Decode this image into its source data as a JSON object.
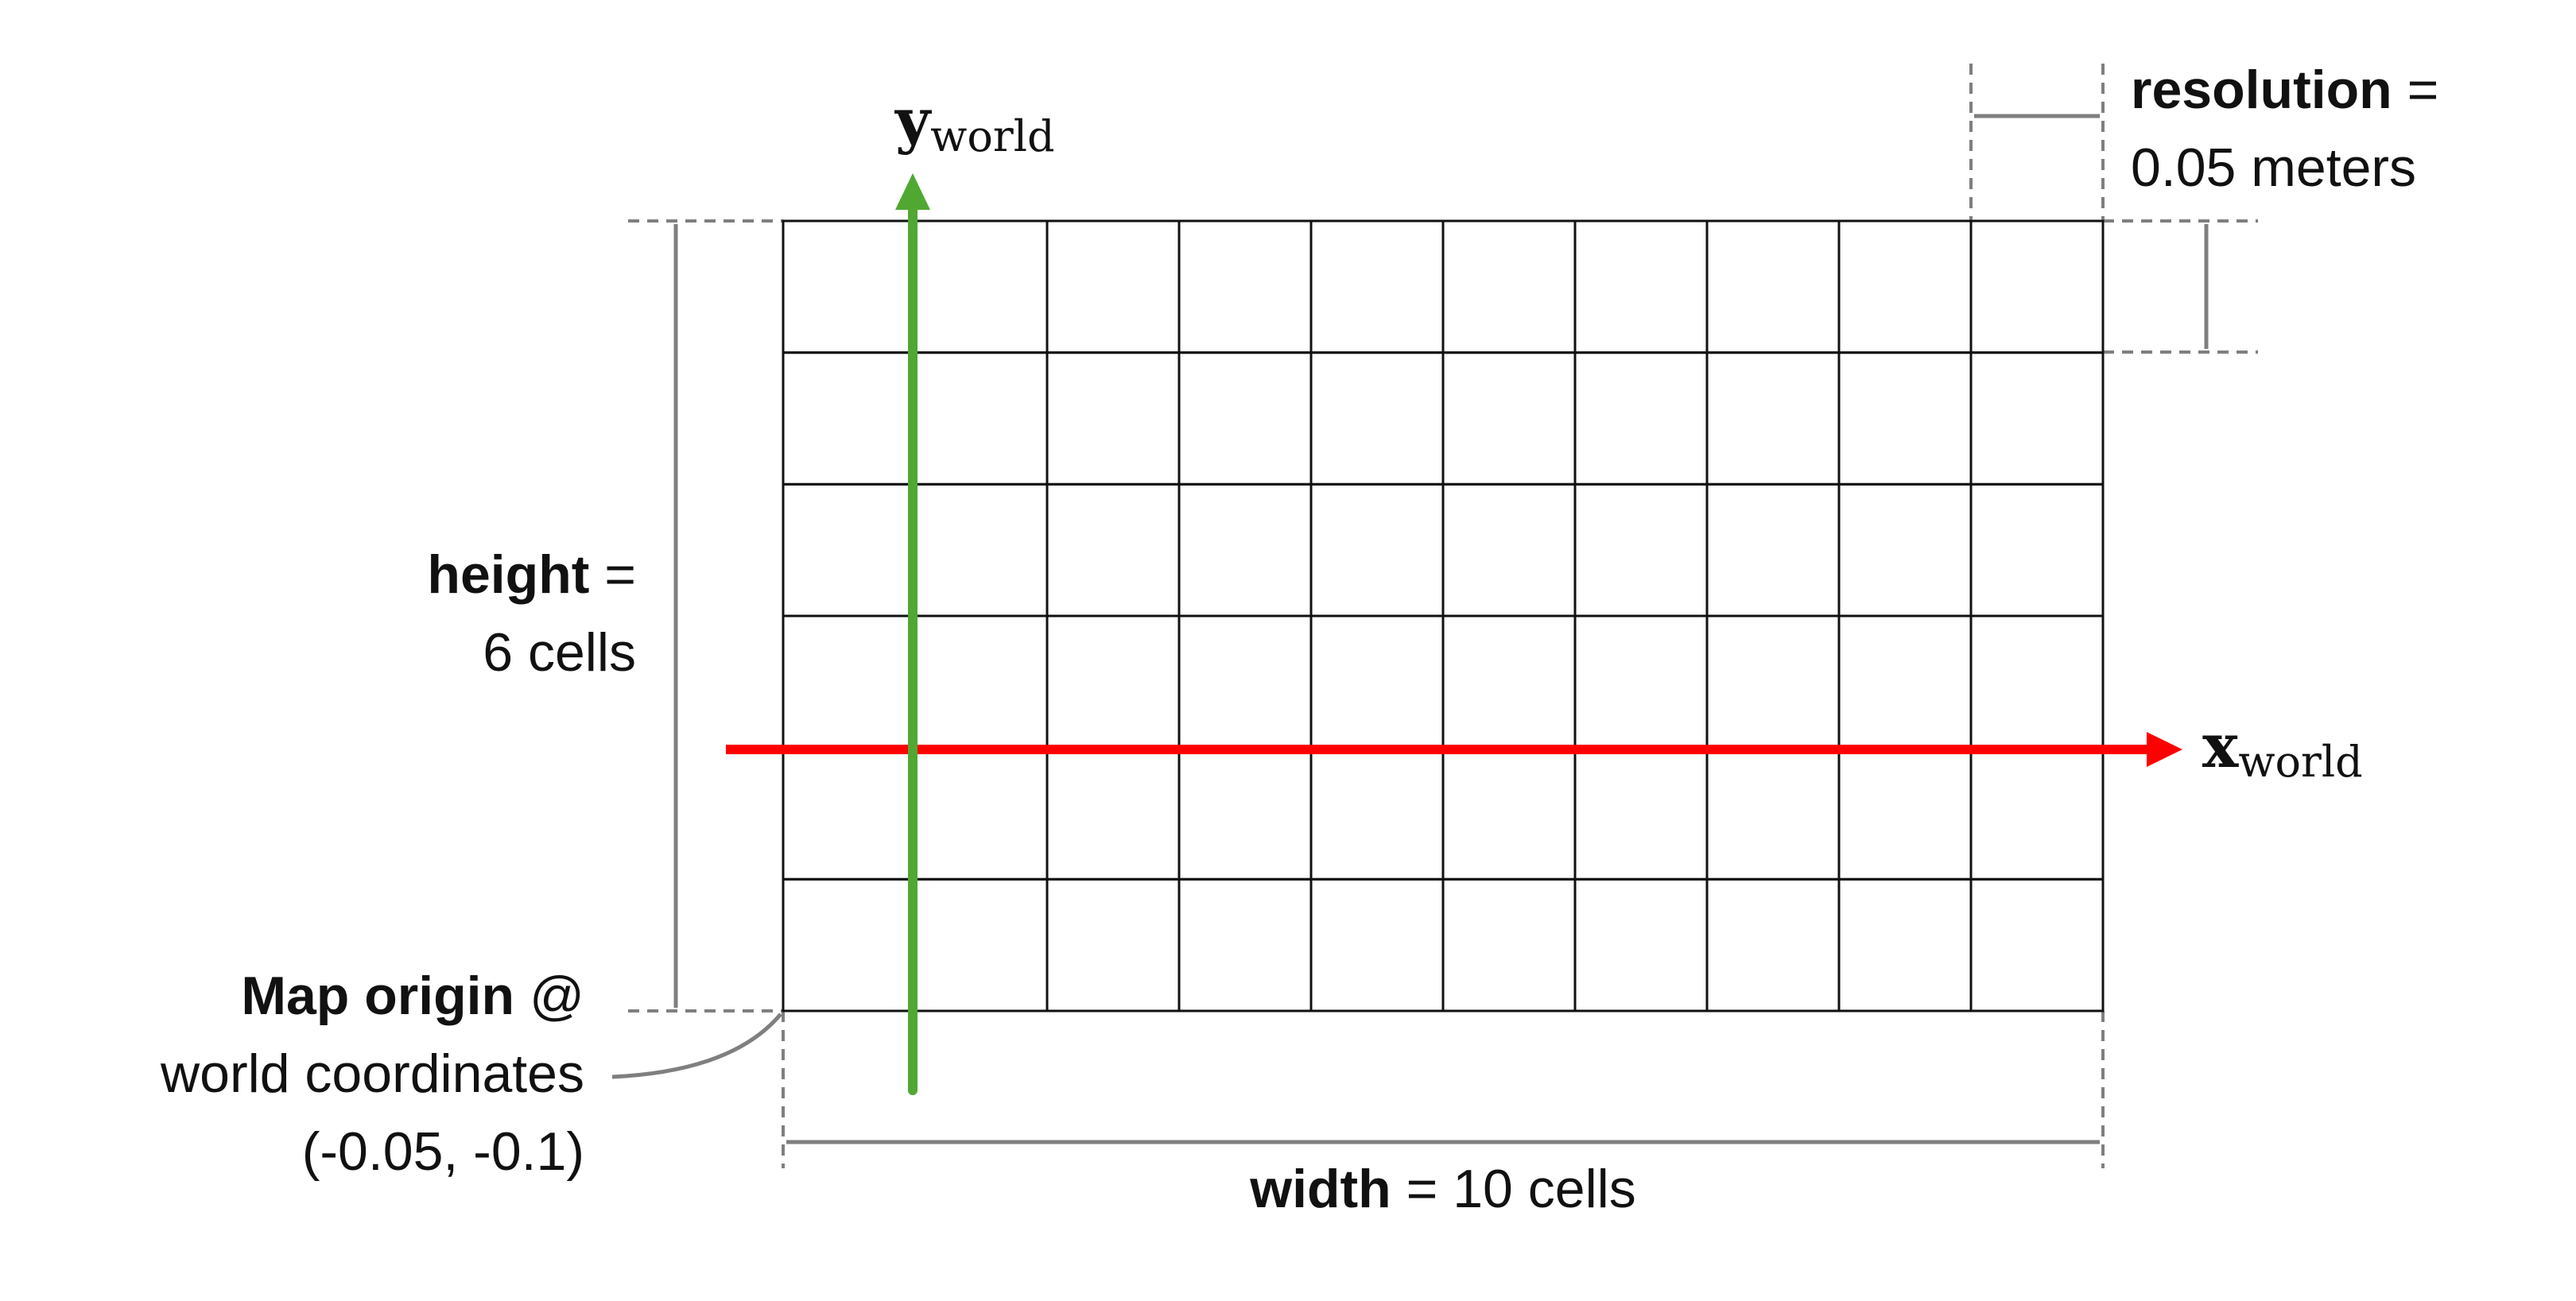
{
  "grid": {
    "columns": 10,
    "rows": 6
  },
  "colors": {
    "grid_line": "#111111",
    "dimension": "#7f7f7f",
    "x_axis": "#ff0000",
    "y_axis": "#50a832"
  },
  "axes": {
    "x": {
      "main": "x",
      "sub": "world"
    },
    "y": {
      "main": "y",
      "sub": "world"
    }
  },
  "labels": {
    "resolution": {
      "bold": "resolution",
      "op": " =",
      "line2": "0.05 meters"
    },
    "height": {
      "bold": "height",
      "op": " =",
      "line2": "6 cells"
    },
    "width": {
      "bold": "width",
      "rest": " = 10 cells"
    },
    "origin": {
      "bold": "Map origin",
      "op": " @",
      "line2": "world coordinates",
      "line3": "(-0.05, -0.1)"
    }
  }
}
